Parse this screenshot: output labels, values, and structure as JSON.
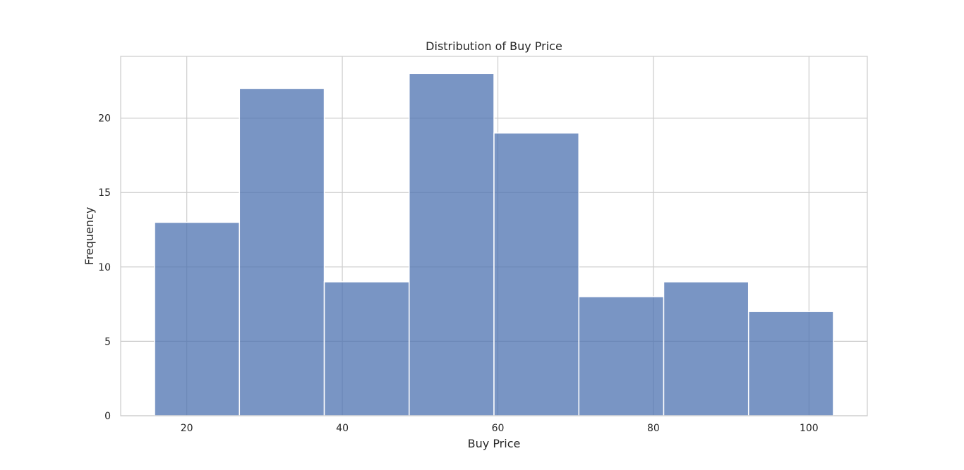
{
  "chart_data": {
    "type": "bar",
    "title": "Distribution of Buy Price",
    "xlabel": "Buy Price",
    "ylabel": "Frequency",
    "bin_edges": [
      15.86,
      26.77,
      37.68,
      48.59,
      59.5,
      70.41,
      81.32,
      92.23,
      103.14
    ],
    "values": [
      13,
      22,
      9,
      23,
      19,
      8,
      9,
      7
    ],
    "xlim": [
      11.5,
      107.5
    ],
    "ylim": [
      0,
      24.15
    ],
    "xticks": [
      20,
      40,
      60,
      80,
      100
    ],
    "yticks": [
      0,
      5,
      10,
      15,
      20
    ],
    "grid": true,
    "bar_color": "#4c72b0",
    "edge_color": "#ffffff",
    "grid_color": "#cccccc"
  }
}
